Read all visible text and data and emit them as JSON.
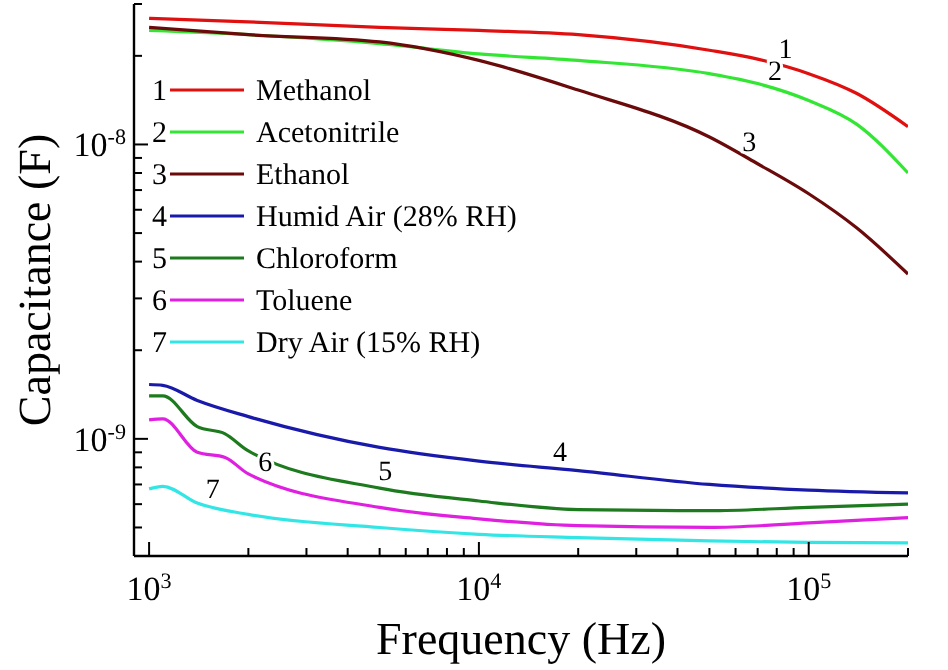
{
  "chart_data": {
    "type": "line",
    "xlabel": "Frequency (Hz)",
    "ylabel": "Capacitance (F)",
    "log": "xy",
    "xlim": [
      900,
      200000
    ],
    "ylim": [
      4e-10,
      3e-08
    ],
    "xticks": [
      {
        "value": 1000,
        "label": "10$^{3}$"
      },
      {
        "value": 2000,
        "label": null
      },
      {
        "value": 3000,
        "label": null
      },
      {
        "value": 4000,
        "label": null
      },
      {
        "value": 5000,
        "label": null
      },
      {
        "value": 6000,
        "label": null
      },
      {
        "value": 7000,
        "label": null
      },
      {
        "value": 8000,
        "label": null
      },
      {
        "value": 9000,
        "label": null
      },
      {
        "value": 10000,
        "label": "10$^{4}$"
      },
      {
        "value": 20000,
        "label": null
      },
      {
        "value": 30000,
        "label": null
      },
      {
        "value": 40000,
        "label": null
      },
      {
        "value": 50000,
        "label": null
      },
      {
        "value": 60000,
        "label": null
      },
      {
        "value": 70000,
        "label": null
      },
      {
        "value": 80000,
        "label": null
      },
      {
        "value": 90000,
        "label": null
      },
      {
        "value": 100000,
        "label": "10$^{5}$"
      },
      {
        "value": 200000,
        "label": null
      }
    ],
    "yticks": [
      {
        "value": 5e-10,
        "label": null
      },
      {
        "value": 6e-10,
        "label": null
      },
      {
        "value": 7e-10,
        "label": null
      },
      {
        "value": 8e-10,
        "label": null
      },
      {
        "value": 9e-10,
        "label": null
      },
      {
        "value": 1e-09,
        "label": "10$^{-9}$"
      },
      {
        "value": 2e-09,
        "label": null
      },
      {
        "value": 3e-09,
        "label": null
      },
      {
        "value": 4e-09,
        "label": null
      },
      {
        "value": 5e-09,
        "label": null
      },
      {
        "value": 6e-09,
        "label": null
      },
      {
        "value": 7e-09,
        "label": null
      },
      {
        "value": 8e-09,
        "label": null
      },
      {
        "value": 9e-09,
        "label": null
      },
      {
        "value": 1e-08,
        "label": "10$^{-8}$"
      },
      {
        "value": 2e-08,
        "label": null
      },
      {
        "value": 3e-08,
        "label": null
      }
    ],
    "grid": false,
    "legend": "top left",
    "marker": "none",
    "line_style": "solid",
    "series": [
      {
        "name": "Methanol",
        "color": "#e01010",
        "x": [
          1000,
          2000,
          5000,
          10000,
          20000,
          50000,
          70000,
          100000,
          140000,
          200000
        ],
        "values": [
          2.68e-08,
          2.61e-08,
          2.5e-08,
          2.44e-08,
          2.36e-08,
          2.09e-08,
          1.95e-08,
          1.74e-08,
          1.49e-08,
          1.15e-08
        ]
      },
      {
        "name": "Acetonitrile",
        "color": "#33e633",
        "x": [
          1000,
          2000,
          5000,
          10000,
          20000,
          50000,
          70000,
          100000,
          140000,
          200000
        ],
        "values": [
          2.44e-08,
          2.36e-08,
          2.2e-08,
          2.03e-08,
          1.93e-08,
          1.74e-08,
          1.61e-08,
          1.41e-08,
          1.17e-08,
          8e-09
        ]
      },
      {
        "name": "Ethanol",
        "color": "#6b0a0a",
        "x": [
          1000,
          2000,
          5000,
          10000,
          20000,
          50000,
          70000,
          100000,
          140000,
          200000
        ],
        "values": [
          2.5e-08,
          2.36e-08,
          2.23e-08,
          1.93e-08,
          1.53e-08,
          1.06e-08,
          8.6e-09,
          6.8e-09,
          5.2e-09,
          3.63e-09
        ]
      },
      {
        "name": "Humid Air (28% RH)",
        "color": "#1a1aaa",
        "x": [
          1000,
          1100,
          1400,
          2000,
          5000,
          10000,
          20000,
          50000,
          100000,
          200000
        ],
        "values": [
          1.53e-09,
          1.52e-09,
          1.35e-09,
          1.19e-09,
          9.35e-10,
          8.4e-10,
          7.8e-10,
          7e-10,
          6.7e-10,
          6.55e-10
        ]
      },
      {
        "name": "Chloroform",
        "color": "#1e7a1e",
        "x": [
          1000,
          1100,
          1400,
          1700,
          2000,
          5000,
          10000,
          20000,
          50000,
          100000,
          200000
        ],
        "values": [
          1.4e-09,
          1.4e-09,
          1.1e-09,
          1.04e-09,
          9.1e-10,
          6.8e-10,
          6.15e-10,
          5.75e-10,
          5.7e-10,
          5.85e-10,
          6e-10
        ]
      },
      {
        "name": "Toluene",
        "color": "#e020e0",
        "x": [
          1000,
          1100,
          1400,
          1700,
          2000,
          5000,
          10000,
          20000,
          50000,
          100000,
          200000
        ],
        "values": [
          1.16e-09,
          1.17e-09,
          9e-10,
          8.65e-10,
          7.6e-10,
          5.85e-10,
          5.35e-10,
          5.07e-10,
          5e-10,
          5.18e-10,
          5.4e-10
        ]
      },
      {
        "name": "Dry Air (15% RH)",
        "color": "#33e6e6",
        "x": [
          1000,
          1100,
          1400,
          2000,
          5000,
          10000,
          20000,
          50000,
          100000,
          200000
        ],
        "values": [
          6.76e-10,
          6.9e-10,
          6.05e-10,
          5.54e-10,
          5e-10,
          4.74e-10,
          4.62e-10,
          4.5e-10,
          4.45e-10,
          4.43e-10
        ]
      }
    ],
    "annotations": [
      {
        "text": "1",
        "x": 85000,
        "y": 1.85e-08
      },
      {
        "text": "2",
        "x": 79000,
        "y": 1.55e-08
      },
      {
        "text": "3",
        "x": 66000,
        "y": 8.9e-09
      },
      {
        "text": "4",
        "x": 17600,
        "y": 7.9e-10
      },
      {
        "text": "5",
        "x": 5200,
        "y": 6.8e-10
      },
      {
        "text": "6",
        "x": 2250,
        "y": 7.3e-10
      },
      {
        "text": "7",
        "x": 1560,
        "y": 5.9e-10
      }
    ]
  }
}
